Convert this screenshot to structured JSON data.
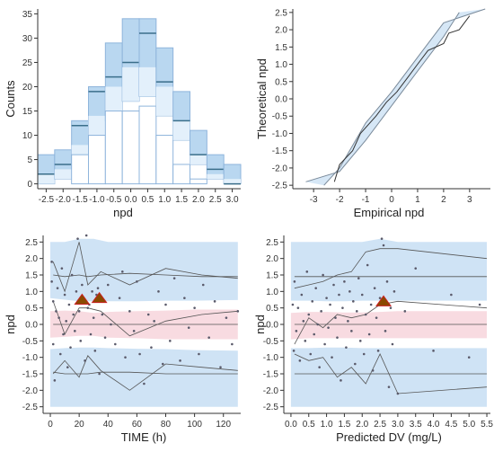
{
  "colors": {
    "band_blue": "#cfe3f5",
    "band_blue_edge": "#8fb5dc",
    "band_pink": "#f8dbe1",
    "line": "#555555",
    "point": "#5a5a6a",
    "outlier_fill": "#8a4a00",
    "outlier_edge": "#c82020",
    "hist_blue": "#b9d7f0",
    "hist_light": "#e3f0fb"
  },
  "chart_data": [
    {
      "id": "histogram",
      "type": "bar",
      "xlabel": "npd",
      "ylabel": "Counts",
      "xlim": [
        -2.75,
        3.25
      ],
      "ylim": [
        -1,
        36
      ],
      "x_ticks": [
        "-2.5",
        "-2.0",
        "-1.5",
        "-1.0",
        "-0.5",
        "0.0",
        "0.5",
        "1.0",
        "1.5",
        "2.0",
        "2.5",
        "3.0"
      ],
      "y_ticks": [
        "0",
        "5",
        "10",
        "15",
        "20",
        "25",
        "30",
        "35"
      ],
      "bins": [
        -2.5,
        -2.0,
        -1.5,
        -1.0,
        -0.5,
        0.0,
        0.5,
        1.0,
        1.5,
        2.0,
        2.5,
        3.0
      ],
      "counts": [
        0,
        0,
        6,
        10,
        15,
        15,
        16,
        10,
        4,
        1,
        0,
        0
      ],
      "pi_lower": [
        0,
        1,
        4,
        8,
        13,
        17,
        18,
        14,
        9,
        4,
        1,
        0
      ],
      "pi_upper": [
        6,
        7,
        13,
        20,
        29,
        34,
        34,
        28,
        19,
        11,
        6,
        4
      ],
      "pi_median": [
        2,
        3,
        8,
        14,
        20,
        24,
        24,
        20,
        13,
        6,
        2,
        1
      ],
      "pi_mid": [
        2,
        4,
        12,
        19,
        22,
        25,
        31,
        21,
        13,
        6,
        3,
        0
      ]
    },
    {
      "id": "qqplot",
      "type": "line",
      "xlabel": "Empirical npd",
      "ylabel": "Theoretical npd",
      "xlim": [
        -3.8,
        3.8
      ],
      "ylim": [
        -2.6,
        2.6
      ],
      "x_ticks": [
        "-3",
        "-2",
        "-1",
        "0",
        "1",
        "2",
        "3"
      ],
      "y_ticks": [
        "-2.5",
        "-2.0",
        "-1.5",
        "-1.0",
        "-0.5",
        "0.0",
        "0.5",
        "1.0",
        "1.5",
        "2.0",
        "2.5"
      ],
      "band_lower": [
        [
          -3.3,
          -2.4
        ],
        [
          -2.0,
          -2.1
        ],
        [
          -1.0,
          -1.2
        ],
        [
          0.0,
          -0.2
        ],
        [
          1.0,
          0.8
        ],
        [
          2.0,
          1.8
        ],
        [
          2.6,
          2.5
        ]
      ],
      "band_upper": [
        [
          -2.6,
          -2.5
        ],
        [
          -2.0,
          -2.0
        ],
        [
          -1.0,
          -0.7
        ],
        [
          0.0,
          0.2
        ],
        [
          1.0,
          1.2
        ],
        [
          2.0,
          2.2
        ],
        [
          3.6,
          2.6
        ]
      ],
      "values": [
        [
          -2.2,
          -2.4
        ],
        [
          -2.0,
          -1.9
        ],
        [
          -1.5,
          -1.5
        ],
        [
          -1.2,
          -1.0
        ],
        [
          -0.6,
          -0.5
        ],
        [
          -0.2,
          -0.1
        ],
        [
          0.2,
          0.2
        ],
        [
          0.6,
          0.6
        ],
        [
          1.0,
          1.0
        ],
        [
          1.4,
          1.4
        ],
        [
          2.0,
          1.6
        ],
        [
          2.2,
          1.9
        ],
        [
          2.6,
          2.0
        ],
        [
          3.0,
          2.4
        ]
      ]
    },
    {
      "id": "vpc_time",
      "type": "scatter",
      "xlabel": "TIME (h)",
      "ylabel": "npd",
      "xlim": [
        -5,
        132
      ],
      "ylim": [
        -2.7,
        2.7
      ],
      "x_ticks": [
        "0",
        "20",
        "40",
        "60",
        "80",
        "100",
        "120"
      ],
      "x_tick_values": [
        0,
        20,
        40,
        60,
        80,
        100,
        120
      ],
      "y_ticks": [
        "-2.5",
        "-2.0",
        "-1.5",
        "-1.0",
        "-0.5",
        "0.0",
        "0.5",
        "1.0",
        "1.5",
        "2.0",
        "2.5"
      ],
      "bands": {
        "x": [
          0,
          10,
          20,
          30,
          40,
          60,
          80,
          100,
          130
        ],
        "upper_hi": [
          2.5,
          2.5,
          2.6,
          2.6,
          2.5,
          2.5,
          2.5,
          2.5,
          2.5
        ],
        "upper_lo": [
          0.8,
          0.75,
          0.7,
          0.7,
          0.7,
          0.7,
          0.72,
          0.72,
          0.74
        ],
        "mid_hi": [
          0.4,
          0.42,
          0.4,
          0.35,
          0.38,
          0.4,
          0.42,
          0.45,
          0.45
        ],
        "mid_lo": [
          -0.4,
          -0.38,
          -0.35,
          -0.35,
          -0.4,
          -0.42,
          -0.45,
          -0.45,
          -0.45
        ],
        "lower_hi": [
          -0.75,
          -0.72,
          -0.7,
          -0.7,
          -0.72,
          -0.74,
          -0.75,
          -0.78,
          -0.8
        ],
        "lower_lo": [
          -2.5,
          -2.5,
          -2.5,
          -2.5,
          -2.5,
          -2.5,
          -2.5,
          -2.5,
          -2.5
        ]
      },
      "series": [
        {
          "x": [
            2,
            10,
            20,
            26,
            35,
            55,
            80,
            105,
            130
          ],
          "y": [
            1.5,
            1.45,
            1.5,
            1.45,
            1.5,
            1.55,
            1.5,
            1.45,
            1.45
          ]
        },
        {
          "x": [
            2,
            10,
            20,
            26,
            35,
            55,
            80,
            105,
            130
          ],
          "y": [
            1.9,
            1.0,
            2.5,
            1.2,
            1.6,
            1.2,
            1.7,
            1.5,
            1.4
          ]
        },
        {
          "x": [
            2,
            10,
            20,
            26,
            35,
            55,
            80,
            105,
            130
          ],
          "y": [
            0.0,
            0.0,
            0.0,
            0.0,
            0.0,
            0.0,
            0.0,
            0.0,
            0.0
          ]
        },
        {
          "x": [
            2,
            10,
            20,
            26,
            35,
            55,
            80,
            105,
            130
          ],
          "y": [
            0.7,
            -0.3,
            0.5,
            0.5,
            0.4,
            -0.35,
            0.1,
            0.3,
            0.4
          ]
        },
        {
          "x": [
            2,
            10,
            20,
            26,
            35,
            55,
            80,
            105,
            130
          ],
          "y": [
            -1.45,
            -1.5,
            -1.5,
            -1.5,
            -1.45,
            -1.45,
            -1.5,
            -1.5,
            -1.5
          ]
        },
        {
          "x": [
            2,
            10,
            20,
            26,
            35,
            55,
            80,
            105,
            130
          ],
          "y": [
            -1.5,
            -1.1,
            -1.6,
            -0.95,
            -1.4,
            -2.0,
            -1.2,
            -1.3,
            -1.4
          ]
        }
      ],
      "outliers": [
        [
          22,
          0.75
        ],
        [
          34,
          0.8
        ]
      ],
      "points": [
        [
          1,
          1.9
        ],
        [
          1,
          1.3
        ],
        [
          2,
          0.7
        ],
        [
          2,
          -0.6
        ],
        [
          3,
          -1.7
        ],
        [
          4,
          0.4
        ],
        [
          5,
          1.1
        ],
        [
          6,
          0.2
        ],
        [
          7,
          -0.9
        ],
        [
          8,
          1.7
        ],
        [
          9,
          -0.3
        ],
        [
          10,
          0.9
        ],
        [
          11,
          0.1
        ],
        [
          12,
          -1.3
        ],
        [
          13,
          0.6
        ],
        [
          14,
          -0.7
        ],
        [
          15,
          1.5
        ],
        [
          16,
          0.3
        ],
        [
          17,
          -0.2
        ],
        [
          18,
          1.0
        ],
        [
          19,
          2.6
        ],
        [
          20,
          0.4
        ],
        [
          21,
          -0.5
        ],
        [
          22,
          1.2
        ],
        [
          23,
          0.8
        ],
        [
          24,
          -1.1
        ],
        [
          25,
          2.7
        ],
        [
          26,
          0.5
        ],
        [
          27,
          0.6
        ],
        [
          28,
          -0.3
        ],
        [
          29,
          1.0
        ],
        [
          30,
          0.2
        ],
        [
          31,
          -0.8
        ],
        [
          32,
          0.9
        ],
        [
          33,
          1.1
        ],
        [
          34,
          -1.5
        ],
        [
          36,
          0.3
        ],
        [
          38,
          -0.4
        ],
        [
          40,
          1.2
        ],
        [
          42,
          0.0
        ],
        [
          45,
          -0.6
        ],
        [
          48,
          0.8
        ],
        [
          50,
          1.6
        ],
        [
          52,
          -1.0
        ],
        [
          55,
          0.4
        ],
        [
          58,
          -0.2
        ],
        [
          60,
          1.3
        ],
        [
          62,
          -0.9
        ],
        [
          65,
          -1.8
        ],
        [
          68,
          0.3
        ],
        [
          70,
          -0.7
        ],
        [
          72,
          0.1
        ],
        [
          75,
          1.0
        ],
        [
          78,
          -1.2
        ],
        [
          80,
          0.6
        ],
        [
          83,
          -0.5
        ],
        [
          86,
          1.4
        ],
        [
          90,
          -1.1
        ],
        [
          93,
          0.8
        ],
        [
          96,
          -0.1
        ],
        [
          100,
          0.5
        ],
        [
          103,
          -0.9
        ],
        [
          106,
          1.2
        ],
        [
          110,
          -0.4
        ],
        [
          114,
          0.7
        ],
        [
          118,
          -1.3
        ],
        [
          122,
          0.2
        ],
        [
          126,
          -0.6
        ],
        [
          130,
          0.4
        ]
      ]
    },
    {
      "id": "vpc_pred",
      "type": "scatter",
      "xlabel": "Predicted DV (mg/L)",
      "ylabel": "npd",
      "xlim": [
        -0.2,
        5.6
      ],
      "ylim": [
        -2.7,
        2.7
      ],
      "x_ticks": [
        "0.0",
        "0.5",
        "1.0",
        "1.5",
        "2.0",
        "2.5",
        "3.0",
        "3.5",
        "4.0",
        "4.5",
        "5.0",
        "5.5"
      ],
      "x_tick_values": [
        0.0,
        0.5,
        1.0,
        1.5,
        2.0,
        2.5,
        3.0,
        3.5,
        4.0,
        4.5,
        5.0,
        5.5
      ],
      "y_ticks": [
        "-2.5",
        "-2.0",
        "-1.5",
        "-1.0",
        "-0.5",
        "0.0",
        "0.5",
        "1.0",
        "1.5",
        "2.0",
        "2.5"
      ],
      "bands": {
        "x": [
          0.0,
          0.5,
          1.0,
          1.5,
          2.0,
          2.5,
          3.0,
          4.0,
          5.5
        ],
        "upper_hi": [
          2.5,
          2.5,
          2.5,
          2.5,
          2.5,
          2.6,
          2.5,
          2.5,
          2.5
        ],
        "upper_lo": [
          0.72,
          0.72,
          0.7,
          0.7,
          0.72,
          0.72,
          0.72,
          0.72,
          0.72
        ],
        "mid_hi": [
          0.35,
          0.38,
          0.38,
          0.36,
          0.36,
          0.38,
          0.4,
          0.4,
          0.4
        ],
        "mid_lo": [
          -0.45,
          -0.42,
          -0.42,
          -0.42,
          -0.42,
          -0.42,
          -0.42,
          -0.42,
          -0.42
        ],
        "lower_hi": [
          -0.72,
          -0.72,
          -0.7,
          -0.7,
          -0.72,
          -0.72,
          -0.72,
          -0.72,
          -0.72
        ],
        "lower_lo": [
          -2.5,
          -2.5,
          -2.5,
          -2.5,
          -2.5,
          -2.5,
          -2.5,
          -2.5,
          -2.5
        ]
      },
      "series": [
        {
          "x": [
            0.1,
            0.5,
            0.9,
            1.3,
            1.7,
            2.1,
            2.5,
            3.0,
            5.5
          ],
          "y": [
            1.45,
            1.45,
            1.45,
            1.45,
            1.45,
            1.45,
            1.45,
            1.45,
            1.45
          ]
        },
        {
          "x": [
            0.1,
            0.5,
            0.9,
            1.3,
            1.7,
            2.1,
            2.5,
            3.0,
            5.5
          ],
          "y": [
            1.1,
            1.2,
            1.3,
            1.5,
            1.6,
            2.2,
            2.3,
            2.3,
            2.0
          ]
        },
        {
          "x": [
            0.1,
            0.5,
            0.9,
            1.3,
            1.7,
            2.1,
            2.5,
            3.0,
            5.5
          ],
          "y": [
            0.0,
            0.0,
            0.0,
            0.0,
            0.0,
            0.0,
            0.0,
            0.0,
            0.0
          ]
        },
        {
          "x": [
            0.1,
            0.5,
            0.9,
            1.3,
            1.7,
            2.1,
            2.5,
            3.0,
            5.5
          ],
          "y": [
            -0.6,
            0.2,
            -0.1,
            0.3,
            0.2,
            0.3,
            0.6,
            0.7,
            0.5
          ]
        },
        {
          "x": [
            0.1,
            0.5,
            0.9,
            1.3,
            1.7,
            2.1,
            2.5,
            3.0,
            5.5
          ],
          "y": [
            -1.5,
            -1.5,
            -1.5,
            -1.5,
            -1.5,
            -1.5,
            -1.5,
            -1.5,
            -1.5
          ]
        },
        {
          "x": [
            0.1,
            0.5,
            0.9,
            1.3,
            1.7,
            2.1,
            2.5,
            3.0,
            5.5
          ],
          "y": [
            -0.9,
            -1.1,
            -1.0,
            -1.6,
            -1.3,
            -1.8,
            -0.9,
            -2.1,
            -1.9
          ]
        }
      ],
      "outliers": [
        [
          2.6,
          0.7
        ]
      ],
      "points": [
        [
          0.05,
          0.6
        ],
        [
          0.08,
          -0.8
        ],
        [
          0.1,
          1.3
        ],
        [
          0.15,
          -0.2
        ],
        [
          0.2,
          0.5
        ],
        [
          0.25,
          -1.1
        ],
        [
          0.3,
          0.9
        ],
        [
          0.35,
          0.1
        ],
        [
          0.4,
          -0.5
        ],
        [
          0.45,
          1.6
        ],
        [
          0.5,
          0.3
        ],
        [
          0.55,
          -0.9
        ],
        [
          0.6,
          0.7
        ],
        [
          0.65,
          -0.3
        ],
        [
          0.7,
          1.1
        ],
        [
          0.75,
          0.0
        ],
        [
          0.8,
          -1.3
        ],
        [
          0.85,
          0.4
        ],
        [
          0.9,
          1.5
        ],
        [
          0.95,
          -0.6
        ],
        [
          1.0,
          0.8
        ],
        [
          1.05,
          -0.1
        ],
        [
          1.1,
          0.6
        ],
        [
          1.15,
          -1.0
        ],
        [
          1.2,
          1.2
        ],
        [
          1.25,
          0.2
        ],
        [
          1.3,
          -0.4
        ],
        [
          1.35,
          0.9
        ],
        [
          1.4,
          -1.7
        ],
        [
          1.45,
          0.5
        ],
        [
          1.5,
          1.3
        ],
        [
          1.55,
          -0.7
        ],
        [
          1.6,
          0.1
        ],
        [
          1.65,
          1.0
        ],
        [
          1.7,
          -0.2
        ],
        [
          1.75,
          0.7
        ],
        [
          1.8,
          -1.2
        ],
        [
          1.85,
          0.4
        ],
        [
          1.9,
          1.4
        ],
        [
          1.95,
          -0.5
        ],
        [
          2.0,
          0.9
        ],
        [
          2.05,
          -0.9
        ],
        [
          2.1,
          0.3
        ],
        [
          2.15,
          1.8
        ],
        [
          2.2,
          -0.3
        ],
        [
          2.25,
          0.6
        ],
        [
          2.3,
          -1.4
        ],
        [
          2.35,
          1.1
        ],
        [
          2.4,
          0.2
        ],
        [
          2.45,
          -0.8
        ],
        [
          2.5,
          0.8
        ],
        [
          2.55,
          2.6
        ],
        [
          2.6,
          2.4
        ],
        [
          2.65,
          -0.2
        ],
        [
          2.7,
          1.3
        ],
        [
          2.75,
          -1.9
        ],
        [
          2.8,
          0.5
        ],
        [
          2.85,
          -0.6
        ],
        [
          2.9,
          1.0
        ],
        [
          3.0,
          -2.1
        ],
        [
          3.2,
          0.4
        ],
        [
          3.5,
          1.7
        ],
        [
          4.0,
          -0.8
        ],
        [
          4.5,
          0.9
        ],
        [
          5.0,
          -1.0
        ],
        [
          5.3,
          0.6
        ]
      ]
    }
  ]
}
